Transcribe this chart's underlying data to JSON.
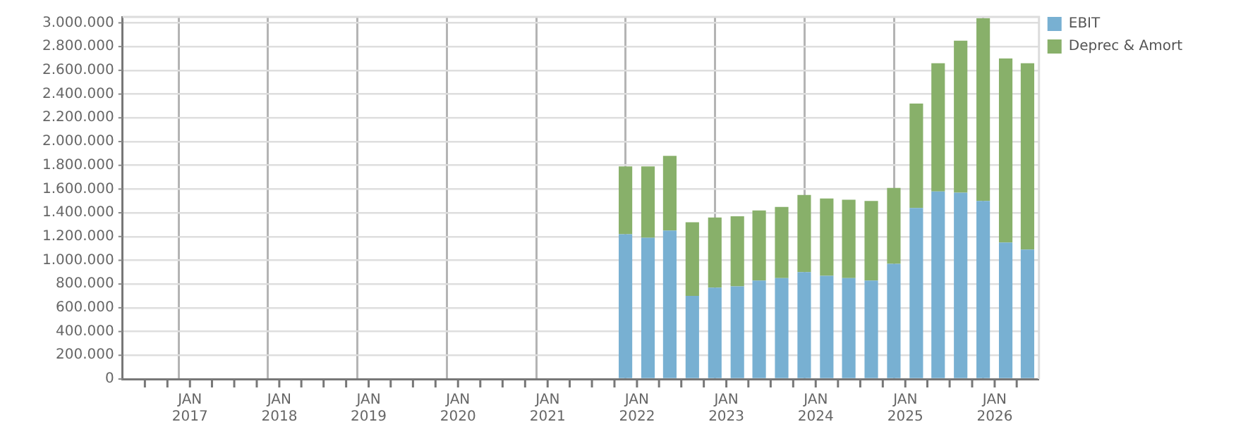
{
  "chart_data": {
    "type": "bar",
    "stacked": true,
    "legend": "top right",
    "grid": true,
    "x": [
      "2021-11-15",
      "2022-02-15",
      "2022-05-15",
      "2022-08-15",
      "2022-11-15",
      "2023-02-15",
      "2023-05-15",
      "2023-08-15",
      "2023-11-15",
      "2024-02-15",
      "2024-05-15",
      "2024-08-15",
      "2024-11-15",
      "2025-02-15",
      "2025-05-15",
      "2025-08-15",
      "2025-11-15",
      "2026-02-15",
      "2026-05-15"
    ],
    "xlim": [
      "2016-04-01",
      "2026-07-01"
    ],
    "xticks": [
      {
        "value": "2016-07-01",
        "label": null
      },
      {
        "value": "2016-10-01",
        "label": null
      },
      {
        "value": "2017-01-01",
        "label": "JAN 2017"
      },
      {
        "value": "2017-04-01",
        "label": null
      },
      {
        "value": "2017-07-01",
        "label": null
      },
      {
        "value": "2017-10-01",
        "label": null
      },
      {
        "value": "2018-01-01",
        "label": "JAN 2018"
      },
      {
        "value": "2018-04-01",
        "label": null
      },
      {
        "value": "2018-07-01",
        "label": null
      },
      {
        "value": "2018-10-01",
        "label": null
      },
      {
        "value": "2019-01-01",
        "label": "JAN 2019"
      },
      {
        "value": "2019-04-01",
        "label": null
      },
      {
        "value": "2019-07-01",
        "label": null
      },
      {
        "value": "2019-10-01",
        "label": null
      },
      {
        "value": "2020-01-01",
        "label": "JAN 2020"
      },
      {
        "value": "2020-04-01",
        "label": null
      },
      {
        "value": "2020-07-01",
        "label": null
      },
      {
        "value": "2020-10-01",
        "label": null
      },
      {
        "value": "2021-01-01",
        "label": "JAN 2021"
      },
      {
        "value": "2021-04-01",
        "label": null
      },
      {
        "value": "2021-07-01",
        "label": null
      },
      {
        "value": "2021-10-01",
        "label": null
      },
      {
        "value": "2022-01-01",
        "label": "JAN 2022"
      },
      {
        "value": "2022-04-01",
        "label": null
      },
      {
        "value": "2022-07-01",
        "label": null
      },
      {
        "value": "2022-10-01",
        "label": null
      },
      {
        "value": "2023-01-01",
        "label": "JAN 2023"
      },
      {
        "value": "2023-04-01",
        "label": null
      },
      {
        "value": "2023-07-01",
        "label": null
      },
      {
        "value": "2023-10-01",
        "label": null
      },
      {
        "value": "2024-01-01",
        "label": "JAN 2024"
      },
      {
        "value": "2024-04-01",
        "label": null
      },
      {
        "value": "2024-07-01",
        "label": null
      },
      {
        "value": "2024-10-01",
        "label": null
      },
      {
        "value": "2025-01-01",
        "label": "JAN 2025"
      },
      {
        "value": "2025-04-01",
        "label": null
      },
      {
        "value": "2025-07-01",
        "label": null
      },
      {
        "value": "2025-10-01",
        "label": null
      },
      {
        "value": "2026-01-01",
        "label": "JAN 2026"
      },
      {
        "value": "2026-04-01",
        "label": null
      }
    ],
    "ylim": [
      0,
      3050000
    ],
    "yticks": [
      {
        "value": 0,
        "label": "0"
      },
      {
        "value": 200000,
        "label": "200.000"
      },
      {
        "value": 400000,
        "label": "400.000"
      },
      {
        "value": 600000,
        "label": "600.000"
      },
      {
        "value": 800000,
        "label": "800.000"
      },
      {
        "value": 1000000,
        "label": "1.000.000"
      },
      {
        "value": 1200000,
        "label": "1.200.000"
      },
      {
        "value": 1400000,
        "label": "1.400.000"
      },
      {
        "value": 1600000,
        "label": "1.600.000"
      },
      {
        "value": 1800000,
        "label": "1.800.000"
      },
      {
        "value": 2000000,
        "label": "2.000.000"
      },
      {
        "value": 2200000,
        "label": "2.200.000"
      },
      {
        "value": 2400000,
        "label": "2.400.000"
      },
      {
        "value": 2600000,
        "label": "2.600.000"
      },
      {
        "value": 2800000,
        "label": "2.800.000"
      },
      {
        "value": 3000000,
        "label": "3.000.000"
      }
    ],
    "series": [
      {
        "name": "EBIT",
        "color": "#78b0d2",
        "values": [
          1220000,
          1190000,
          1250000,
          700000,
          770000,
          780000,
          830000,
          850000,
          900000,
          870000,
          850000,
          830000,
          970000,
          1440000,
          1580000,
          1570000,
          1500000,
          1150000,
          1090000
        ]
      },
      {
        "name": "Deprec & Amort",
        "color": "#88b06a",
        "values": [
          570000,
          600000,
          630000,
          620000,
          590000,
          590000,
          590000,
          600000,
          650000,
          650000,
          660000,
          670000,
          640000,
          880000,
          1080000,
          1280000,
          1540000,
          1550000,
          1570000
        ]
      }
    ]
  }
}
